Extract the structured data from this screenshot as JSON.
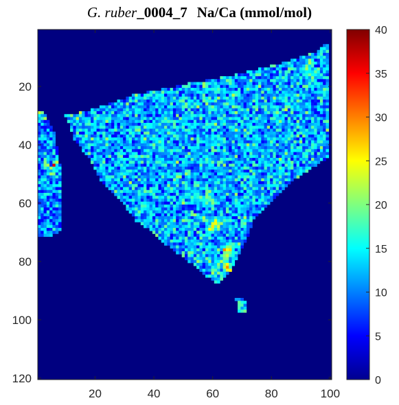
{
  "title": {
    "species": "G. ruber",
    "sample": "_0004_7",
    "quantity": "Na/Ca (mmol/mol)"
  },
  "chart_data": {
    "type": "heatmap",
    "title": "G. ruber_0004_7 Na/Ca (mmol/mol)",
    "xlabel": "",
    "ylabel": "",
    "xlim": [
      1,
      100
    ],
    "ylim": [
      1,
      120
    ],
    "y_reversed": true,
    "x_ticks": [
      20,
      40,
      60,
      80,
      100
    ],
    "y_ticks": [
      20,
      40,
      60,
      80,
      100,
      120
    ],
    "colorbar": {
      "label": "Na/Ca (mmol/mol)",
      "min": 0,
      "max": 40,
      "ticks": [
        0,
        5,
        10,
        15,
        20,
        25,
        30,
        35,
        40
      ],
      "colormap": "jet"
    },
    "background_value": 0,
    "regions": [
      {
        "name": "main fragment",
        "typical_value": 12,
        "range": [
          5,
          38
        ],
        "outline_x": [
          10,
          19,
          33,
          52,
          68,
          84,
          96,
          99,
          100,
          100,
          88,
          80,
          74,
          71,
          67,
          62,
          58,
          52,
          44,
          40,
          34,
          28,
          22,
          19,
          13,
          10
        ],
        "outline_y": [
          30,
          28,
          23,
          19,
          16,
          12,
          8,
          5,
          8,
          44,
          52,
          60,
          66,
          74,
          82,
          88,
          85,
          80,
          74,
          70,
          66,
          58,
          52,
          46,
          38,
          30
        ]
      },
      {
        "name": "left fragment",
        "typical_value": 10,
        "range": [
          5,
          36
        ],
        "outline_x": [
          1,
          3,
          6,
          8,
          9,
          8,
          4,
          1
        ],
        "outline_y": [
          29,
          29,
          35,
          46,
          62,
          70,
          72,
          72
        ]
      },
      {
        "name": "isolated pixels",
        "typical_value": 14,
        "range": [
          8,
          25
        ],
        "outline_x": [
          68,
          71,
          72,
          69
        ],
        "outline_y": [
          93,
          93,
          98,
          98
        ]
      }
    ],
    "hotspots": [
      {
        "x": 61,
        "y": 68,
        "value": 30
      },
      {
        "x": 65,
        "y": 77,
        "value": 32
      },
      {
        "x": 63,
        "y": 82,
        "value": 28
      },
      {
        "x": 67,
        "y": 84,
        "value": 34
      },
      {
        "x": 58,
        "y": 58,
        "value": 24
      },
      {
        "x": 1,
        "y": 29,
        "value": 35
      },
      {
        "x": 5,
        "y": 47,
        "value": 33
      }
    ]
  }
}
